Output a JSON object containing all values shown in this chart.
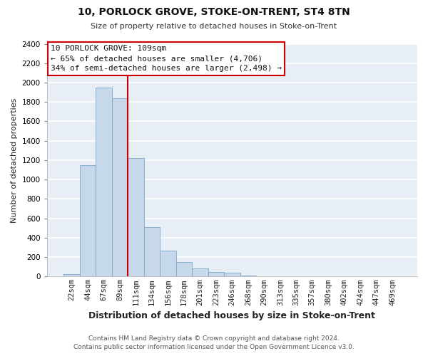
{
  "title": "10, PORLOCK GROVE, STOKE-ON-TRENT, ST4 8TN",
  "subtitle": "Size of property relative to detached houses in Stoke-on-Trent",
  "xlabel": "Distribution of detached houses by size in Stoke-on-Trent",
  "ylabel": "Number of detached properties",
  "bin_labels": [
    "22sqm",
    "44sqm",
    "67sqm",
    "89sqm",
    "111sqm",
    "134sqm",
    "156sqm",
    "178sqm",
    "201sqm",
    "223sqm",
    "246sqm",
    "268sqm",
    "290sqm",
    "313sqm",
    "335sqm",
    "357sqm",
    "380sqm",
    "402sqm",
    "424sqm",
    "447sqm",
    "469sqm"
  ],
  "bar_values": [
    25,
    1150,
    1950,
    1840,
    1220,
    510,
    265,
    150,
    80,
    50,
    40,
    10,
    5,
    2,
    1,
    1,
    0,
    0,
    0,
    0,
    0
  ],
  "bar_color": "#c8d8eb",
  "bar_edge_color": "#7aa8cc",
  "property_line_color": "#cc0000",
  "annotation_title": "10 PORLOCK GROVE: 109sqm",
  "annotation_line1": "← 65% of detached houses are smaller (4,706)",
  "annotation_line2": "34% of semi-detached houses are larger (2,498) →",
  "annotation_box_color": "white",
  "annotation_box_edge": "#cc0000",
  "ylim": [
    0,
    2400
  ],
  "yticks": [
    0,
    200,
    400,
    600,
    800,
    1000,
    1200,
    1400,
    1600,
    1800,
    2000,
    2200,
    2400
  ],
  "footer_line1": "Contains HM Land Registry data © Crown copyright and database right 2024.",
  "footer_line2": "Contains public sector information licensed under the Open Government Licence v3.0.",
  "bg_color": "#ffffff",
  "plot_bg_color": "#e8eef5",
  "grid_color": "#ffffff",
  "title_fontsize": 10,
  "subtitle_fontsize": 8,
  "ylabel_fontsize": 8,
  "xlabel_fontsize": 9,
  "tick_fontsize": 7.5,
  "footer_fontsize": 6.5,
  "annot_fontsize": 8
}
